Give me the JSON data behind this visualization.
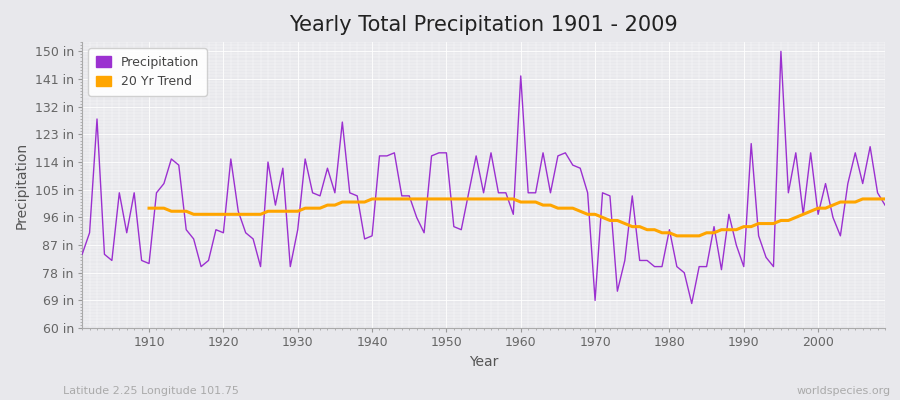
{
  "title": "Yearly Total Precipitation 1901 - 2009",
  "xlabel": "Year",
  "ylabel": "Precipitation",
  "subtitle": "Latitude 2.25 Longitude 101.75",
  "watermark": "worldspecies.org",
  "years": [
    1901,
    1902,
    1903,
    1904,
    1905,
    1906,
    1907,
    1908,
    1909,
    1910,
    1911,
    1912,
    1913,
    1914,
    1915,
    1916,
    1917,
    1918,
    1919,
    1920,
    1921,
    1922,
    1923,
    1924,
    1925,
    1926,
    1927,
    1928,
    1929,
    1930,
    1931,
    1932,
    1933,
    1934,
    1935,
    1936,
    1937,
    1938,
    1939,
    1940,
    1941,
    1942,
    1943,
    1944,
    1945,
    1946,
    1947,
    1948,
    1949,
    1950,
    1951,
    1952,
    1953,
    1954,
    1955,
    1956,
    1957,
    1958,
    1959,
    1960,
    1961,
    1962,
    1963,
    1964,
    1965,
    1966,
    1967,
    1968,
    1969,
    1970,
    1971,
    1972,
    1973,
    1974,
    1975,
    1976,
    1977,
    1978,
    1979,
    1980,
    1981,
    1982,
    1983,
    1984,
    1985,
    1986,
    1987,
    1988,
    1989,
    1990,
    1991,
    1992,
    1993,
    1994,
    1995,
    1996,
    1997,
    1998,
    1999,
    2000,
    2001,
    2002,
    2003,
    2004,
    2005,
    2006,
    2007,
    2008,
    2009
  ],
  "precip": [
    84,
    91,
    128,
    84,
    82,
    104,
    91,
    104,
    82,
    81,
    104,
    107,
    115,
    113,
    92,
    89,
    80,
    82,
    92,
    91,
    115,
    98,
    91,
    89,
    80,
    114,
    100,
    112,
    80,
    92,
    115,
    104,
    103,
    112,
    104,
    127,
    104,
    103,
    89,
    90,
    116,
    116,
    117,
    103,
    103,
    96,
    91,
    116,
    117,
    117,
    93,
    92,
    104,
    116,
    104,
    117,
    104,
    104,
    97,
    142,
    104,
    104,
    117,
    104,
    116,
    117,
    113,
    112,
    104,
    69,
    104,
    103,
    72,
    82,
    103,
    82,
    82,
    80,
    80,
    92,
    80,
    78,
    68,
    80,
    80,
    93,
    79,
    97,
    87,
    80,
    120,
    90,
    83,
    80,
    150,
    104,
    117,
    97,
    117,
    97,
    107,
    96,
    90,
    107,
    117,
    107,
    119,
    104,
    100
  ],
  "trend_years": [
    1910,
    1911,
    1912,
    1913,
    1914,
    1915,
    1916,
    1917,
    1918,
    1919,
    1920,
    1921,
    1922,
    1923,
    1924,
    1925,
    1926,
    1927,
    1928,
    1929,
    1930,
    1931,
    1932,
    1933,
    1934,
    1935,
    1936,
    1937,
    1938,
    1939,
    1940,
    1941,
    1942,
    1943,
    1944,
    1945,
    1946,
    1947,
    1948,
    1949,
    1950,
    1951,
    1952,
    1953,
    1954,
    1955,
    1956,
    1957,
    1958,
    1959,
    1960,
    1961,
    1962,
    1963,
    1964,
    1965,
    1966,
    1967,
    1968,
    1969,
    1970,
    1971,
    1972,
    1973,
    1974,
    1975,
    1976,
    1977,
    1978,
    1979,
    1980,
    1981,
    1982,
    1983,
    1984,
    1985,
    1986,
    1987,
    1988,
    1989,
    1990,
    1991,
    1992,
    1993,
    1994,
    1995,
    1996,
    1997,
    1998,
    1999,
    2000,
    2001,
    2002,
    2003,
    2004,
    2005,
    2006,
    2007,
    2008,
    2009
  ],
  "trend": [
    99,
    99,
    99,
    98,
    98,
    98,
    97,
    97,
    97,
    97,
    97,
    97,
    97,
    97,
    97,
    97,
    98,
    98,
    98,
    98,
    98,
    99,
    99,
    99,
    100,
    100,
    101,
    101,
    101,
    101,
    102,
    102,
    102,
    102,
    102,
    102,
    102,
    102,
    102,
    102,
    102,
    102,
    102,
    102,
    102,
    102,
    102,
    102,
    102,
    102,
    101,
    101,
    101,
    100,
    100,
    99,
    99,
    99,
    98,
    97,
    97,
    96,
    95,
    95,
    94,
    93,
    93,
    92,
    92,
    91,
    91,
    90,
    90,
    90,
    90,
    91,
    91,
    92,
    92,
    92,
    93,
    93,
    94,
    94,
    94,
    95,
    95,
    96,
    97,
    98,
    99,
    99,
    100,
    101,
    101,
    101,
    102,
    102,
    102,
    102
  ],
  "precip_color": "#9b30d0",
  "trend_color": "#ffa500",
  "bg_color": "#e8e8ec",
  "plot_bg_color": "#e8e8ec",
  "ylim": [
    60,
    153
  ],
  "yticks": [
    60,
    69,
    78,
    87,
    96,
    105,
    114,
    123,
    132,
    141,
    150
  ],
  "ytick_labels": [
    "60 in",
    "69 in",
    "78 in",
    "87 in",
    "96 in",
    "105 in",
    "114 in",
    "123 in",
    "132 in",
    "141 in",
    "150 in"
  ],
  "xlim": [
    1901,
    2009
  ],
  "xticks": [
    1910,
    1920,
    1930,
    1940,
    1950,
    1960,
    1970,
    1980,
    1990,
    2000
  ],
  "title_fontsize": 15,
  "axis_label_fontsize": 10,
  "tick_fontsize": 9,
  "legend_fontsize": 9,
  "subtitle_fontsize": 8,
  "watermark_fontsize": 8
}
